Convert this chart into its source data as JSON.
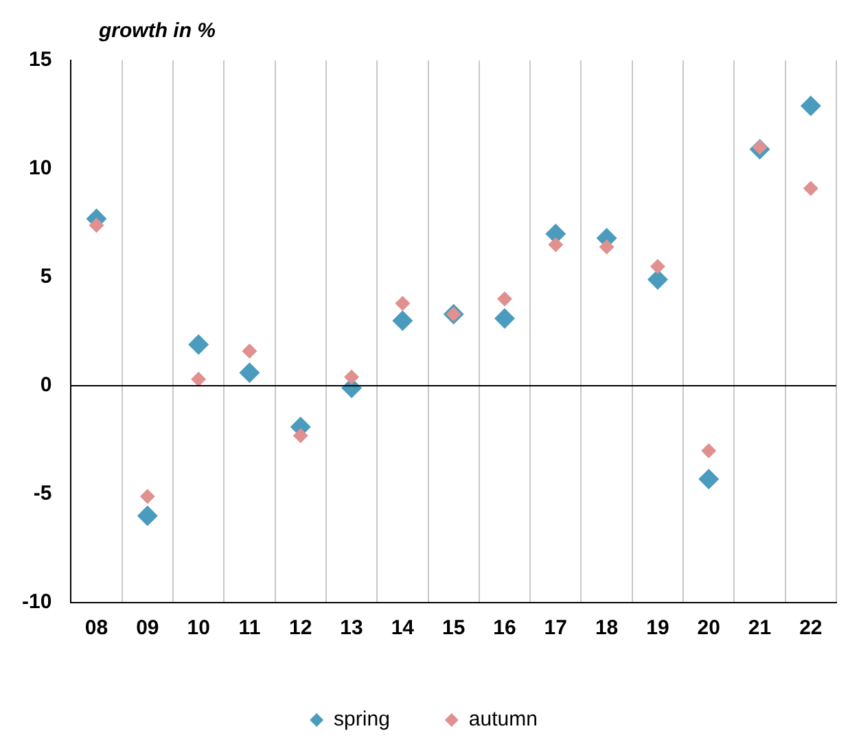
{
  "chart_data": {
    "type": "scatter",
    "ylabel": "growth in %",
    "categories": [
      "08",
      "09",
      "10",
      "11",
      "12",
      "13",
      "14",
      "15",
      "16",
      "17",
      "18",
      "19",
      "20",
      "21",
      "22"
    ],
    "series": [
      {
        "name": "spring",
        "color": "#4a9bbd",
        "values": [
          7.7,
          -6.0,
          1.9,
          0.6,
          -1.9,
          -0.1,
          3.0,
          3.3,
          3.1,
          7.0,
          6.8,
          4.9,
          -4.3,
          10.9,
          12.9
        ]
      },
      {
        "name": "autumn",
        "color": "#e0918f",
        "values": [
          7.4,
          -5.1,
          0.3,
          1.6,
          -2.3,
          0.4,
          3.8,
          3.3,
          4.0,
          6.5,
          6.4,
          5.5,
          -3.0,
          11.0,
          9.1
        ]
      }
    ],
    "ylim": [
      -10,
      15
    ],
    "yticks": [
      -10,
      -5,
      0,
      5,
      10,
      15
    ],
    "grid": "x",
    "legend": "bottom",
    "marker": "diamond"
  }
}
